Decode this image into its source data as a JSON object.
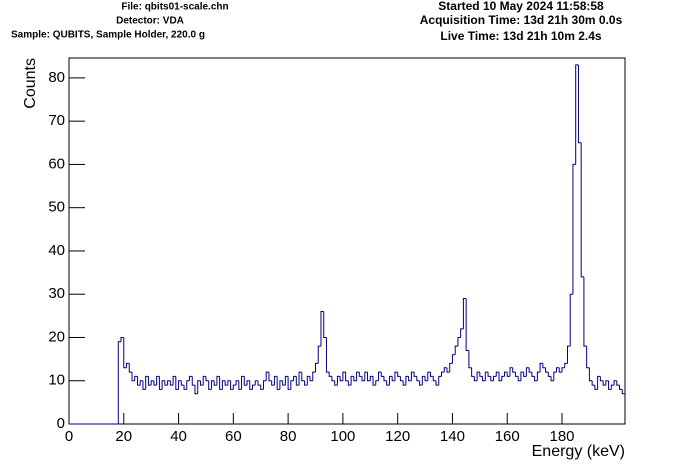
{
  "chart_data": {
    "type": "histogram",
    "info_left": [
      "File: qbits01-scale.chn",
      "Detector: VDA",
      "Sample: QUBITS, Sample Holder, 220.0 g"
    ],
    "info_right": [
      "Started 10 May 2024 11:58:58",
      "Acquisition Time: 13d 21h 30m 0.0s",
      "Live Time: 13d 21h 10m 2.4s"
    ],
    "x_label": "Energy (keV)",
    "y_label": "Counts",
    "color": "#000080",
    "xlim": [
      0,
      203
    ],
    "ylim": [
      0,
      84.6
    ],
    "xticks": [
      0,
      20,
      40,
      60,
      80,
      100,
      120,
      140,
      160,
      180
    ],
    "yticks": [
      0,
      10,
      20,
      30,
      40,
      50,
      60,
      70,
      80
    ],
    "bins": [
      0,
      1,
      2,
      3,
      4,
      5,
      6,
      7,
      8,
      9,
      10,
      11,
      12,
      13,
      14,
      15,
      16,
      17,
      18,
      19,
      20,
      21,
      22,
      23,
      24,
      25,
      26,
      27,
      28,
      29,
      30,
      31,
      32,
      33,
      34,
      35,
      36,
      37,
      38,
      39,
      40,
      41,
      42,
      43,
      44,
      45,
      46,
      47,
      48,
      49,
      50,
      51,
      52,
      53,
      54,
      55,
      56,
      57,
      58,
      59,
      60,
      61,
      62,
      63,
      64,
      65,
      66,
      67,
      68,
      69,
      70,
      71,
      72,
      73,
      74,
      75,
      76,
      77,
      78,
      79,
      80,
      81,
      82,
      83,
      84,
      85,
      86,
      87,
      88,
      89,
      90,
      91,
      92,
      93,
      94,
      95,
      96,
      97,
      98,
      99,
      100,
      101,
      102,
      103,
      104,
      105,
      106,
      107,
      108,
      109,
      110,
      111,
      112,
      113,
      114,
      115,
      116,
      117,
      118,
      119,
      120,
      121,
      122,
      123,
      124,
      125,
      126,
      127,
      128,
      129,
      130,
      131,
      132,
      133,
      134,
      135,
      136,
      137,
      138,
      139,
      140,
      141,
      142,
      143,
      144,
      145,
      146,
      147,
      148,
      149,
      150,
      151,
      152,
      153,
      154,
      155,
      156,
      157,
      158,
      159,
      160,
      161,
      162,
      163,
      164,
      165,
      166,
      167,
      168,
      169,
      170,
      171,
      172,
      173,
      174,
      175,
      176,
      177,
      178,
      179,
      180,
      181,
      182,
      183,
      184,
      185,
      186,
      187,
      188,
      189,
      190,
      191,
      192,
      193,
      194,
      195,
      196,
      197,
      198,
      199,
      200,
      201,
      202,
      203
    ],
    "values": [
      0,
      0,
      0,
      0,
      0,
      0,
      0,
      0,
      0,
      0,
      0,
      0,
      0,
      0,
      0,
      0,
      0,
      0,
      19,
      20,
      13,
      14,
      12,
      10,
      11,
      9,
      10,
      8,
      11,
      9,
      10,
      9,
      11,
      8,
      10,
      9,
      10,
      9,
      11,
      8,
      10,
      9,
      8,
      10,
      11,
      9,
      7,
      10,
      9,
      11,
      10,
      8,
      10,
      9,
      11,
      8,
      10,
      9,
      10,
      8,
      9,
      10,
      8,
      11,
      9,
      10,
      8,
      9,
      10,
      9,
      8,
      10,
      12,
      10,
      9,
      11,
      8,
      10,
      9,
      11,
      8,
      10,
      11,
      9,
      12,
      10,
      9,
      11,
      10,
      12,
      14,
      18,
      26,
      20,
      12,
      11,
      10,
      9,
      11,
      10,
      12,
      10,
      9,
      11,
      10,
      12,
      11,
      10,
      12,
      10,
      11,
      9,
      10,
      12,
      11,
      10,
      9,
      11,
      10,
      12,
      11,
      10,
      9,
      11,
      10,
      12,
      11,
      10,
      9,
      11,
      10,
      12,
      11,
      10,
      9,
      11,
      12,
      13,
      12,
      14,
      16,
      18,
      20,
      22,
      29,
      17,
      13,
      11,
      10,
      12,
      11,
      10,
      12,
      11,
      10,
      11,
      12,
      10,
      11,
      12,
      11,
      13,
      12,
      11,
      10,
      12,
      11,
      13,
      12,
      11,
      10,
      12,
      14,
      13,
      12,
      11,
      10,
      12,
      13,
      12,
      13,
      14,
      18,
      30,
      60,
      83,
      65,
      34,
      18,
      13,
      10,
      9,
      8,
      11,
      10,
      9,
      10,
      8,
      9,
      10,
      9,
      8,
      7
    ]
  }
}
